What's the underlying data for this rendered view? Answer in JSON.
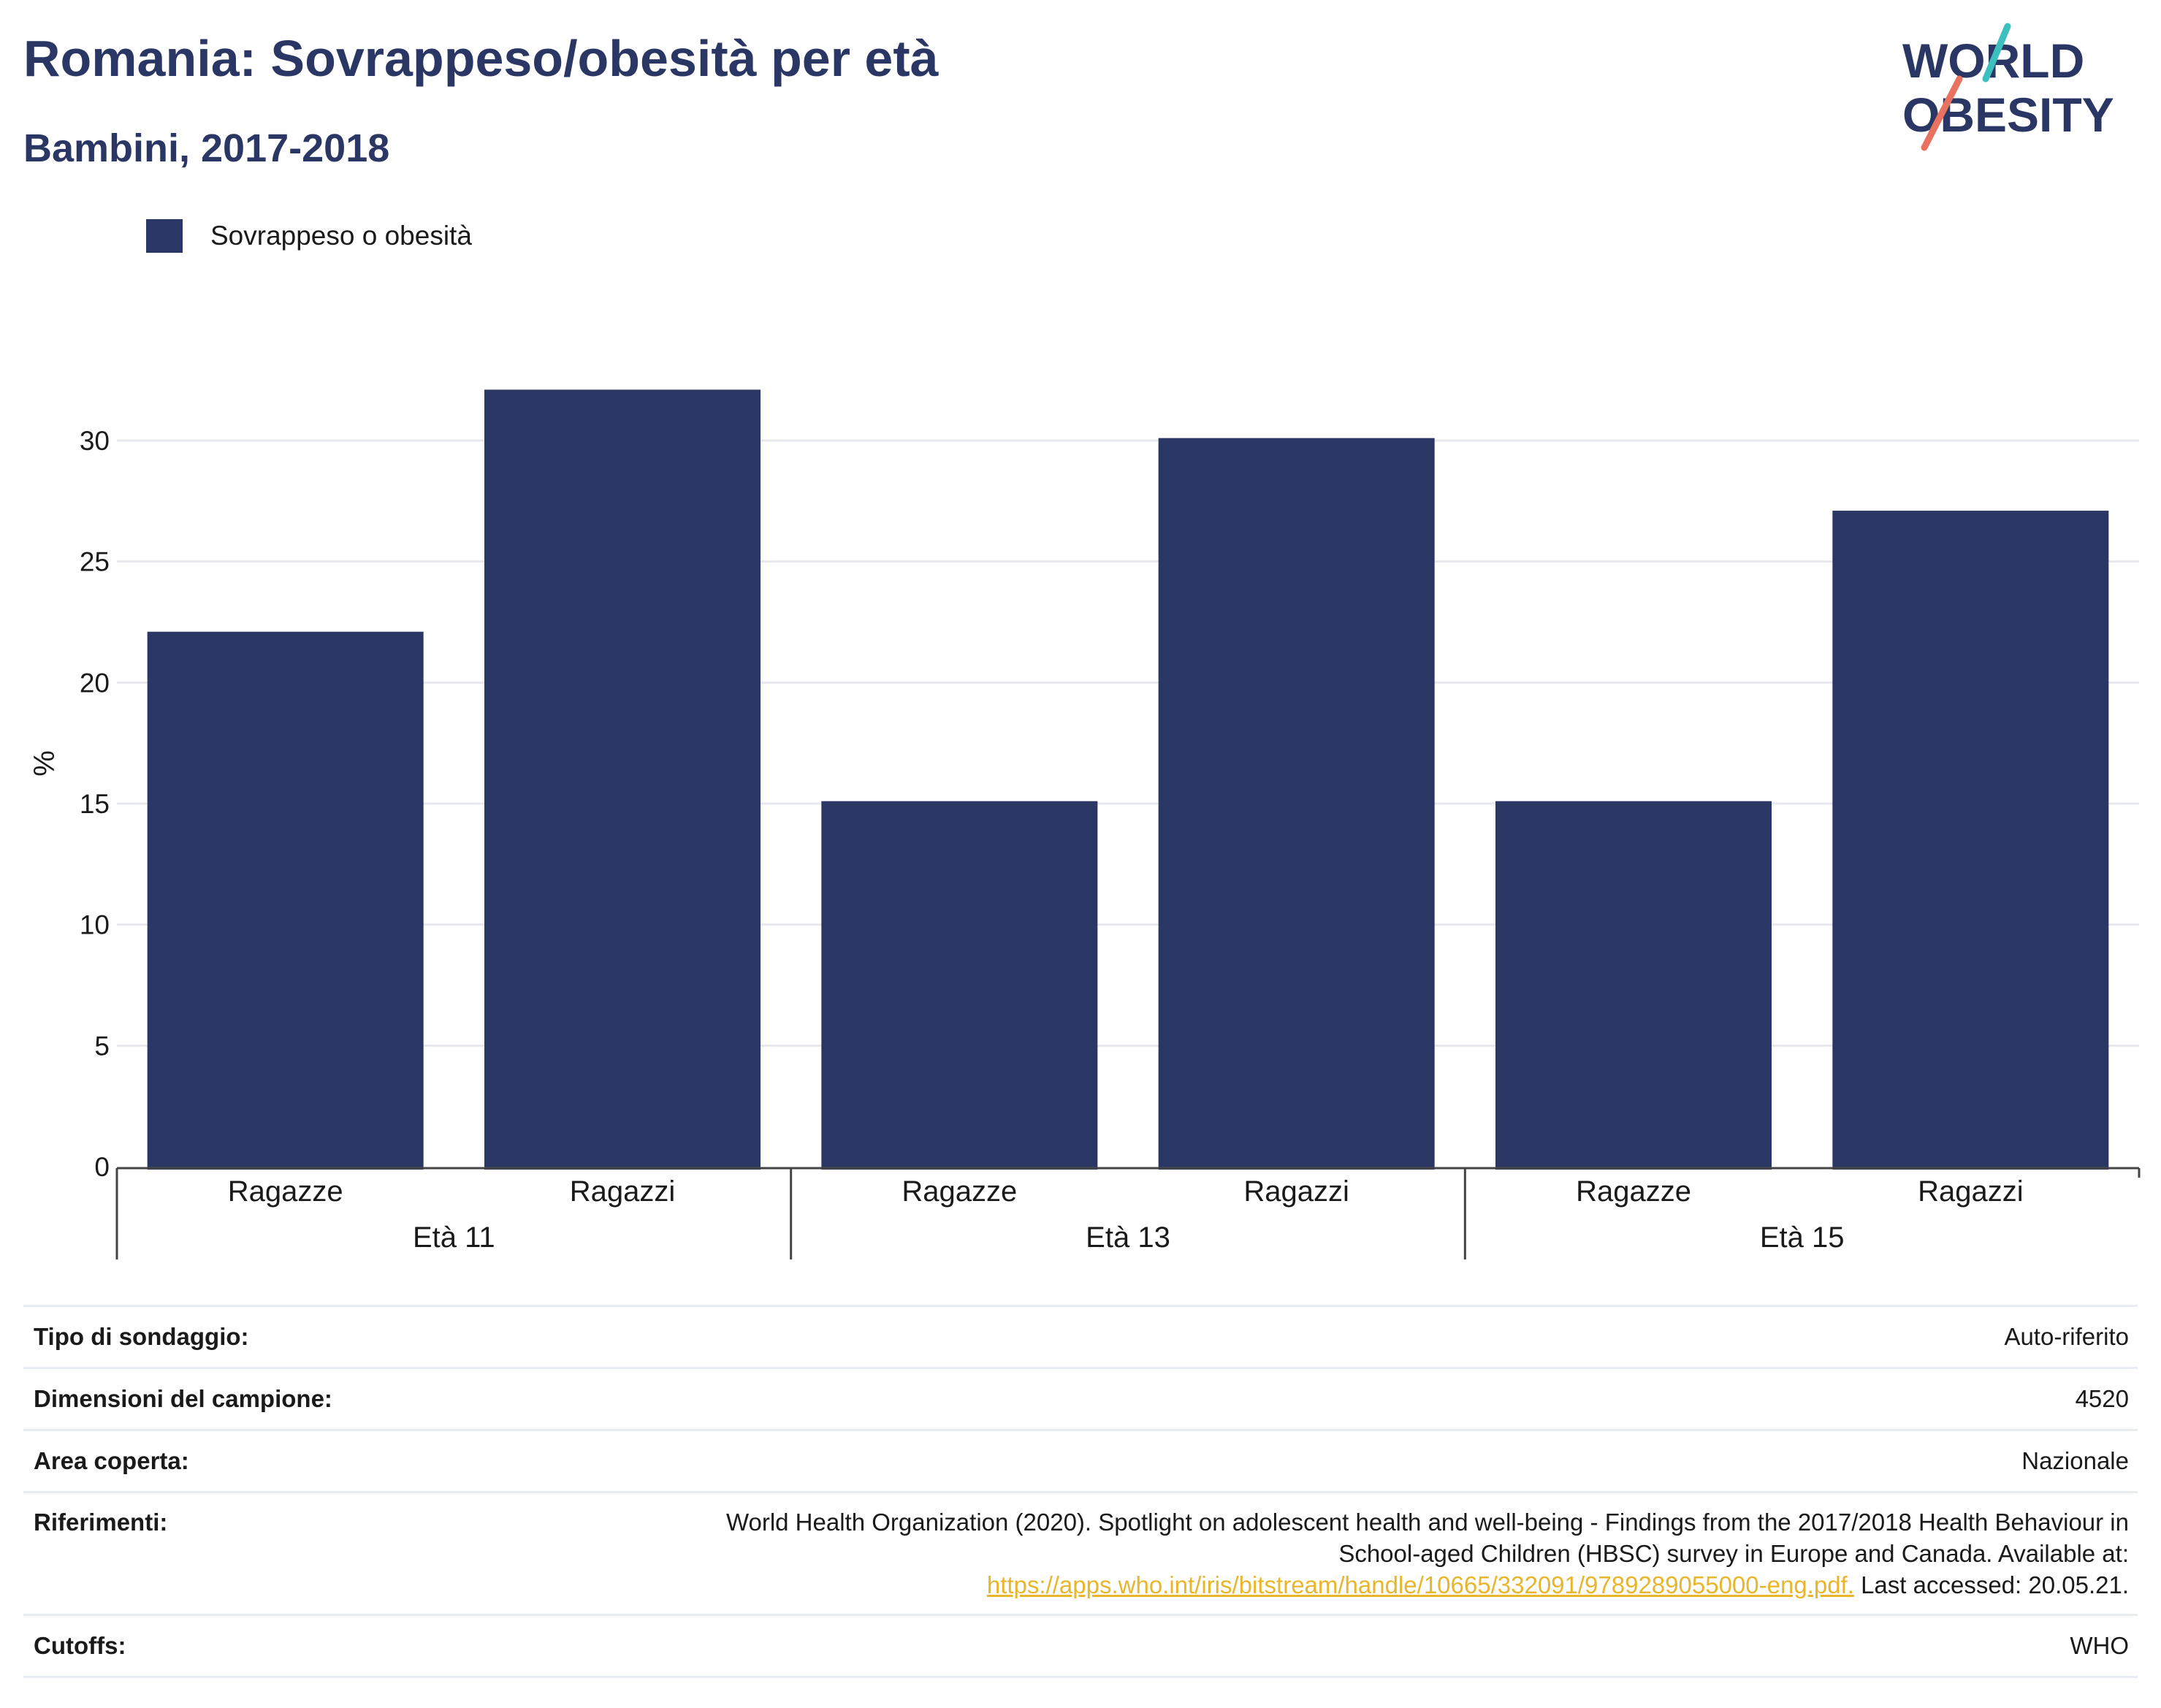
{
  "header": {
    "title": "Romania: Sovrappeso/obesità per età",
    "subtitle": "Bambini, 2017-2018"
  },
  "logo": {
    "line1": "WORLD",
    "line2": "OBESITY",
    "icon": "world-obesity-logo"
  },
  "colors": {
    "bar": "#2a3663",
    "title": "#2a3663",
    "link": "#e8b52b",
    "accent_teal": "#3cbfbf",
    "accent_coral": "#e8715f"
  },
  "chart_data": {
    "type": "bar",
    "legend": [
      "Sovrappeso o obesità"
    ],
    "legend_position": "top-left",
    "ylabel": "%",
    "ylim": [
      0,
      33.5
    ],
    "yticks": [
      0,
      5,
      10,
      15,
      20,
      25,
      30
    ],
    "grid": true,
    "groups": [
      {
        "label": "Età 11",
        "categories": [
          "Ragazze",
          "Ragazzi"
        ],
        "values": [
          22.1,
          32.1
        ]
      },
      {
        "label": "Età 13",
        "categories": [
          "Ragazze",
          "Ragazzi"
        ],
        "values": [
          15.1,
          30.1
        ]
      },
      {
        "label": "Età 15",
        "categories": [
          "Ragazze",
          "Ragazzi"
        ],
        "values": [
          15.1,
          27.1
        ]
      }
    ]
  },
  "info": {
    "survey_type": {
      "label": "Tipo di sondaggio:",
      "value": "Auto-riferito"
    },
    "sample_size": {
      "label": "Dimensioni del campione:",
      "value": "4520"
    },
    "area": {
      "label": "Area coperta:",
      "value": "Nazionale"
    },
    "references": {
      "label": "Riferimenti:",
      "line1": "World Health Organization (2020). Spotlight on adolescent health and well-being - Findings from the 2017/2018 Health Behaviour in",
      "line2": "School-aged Children (HBSC) survey in Europe and Canada. Available at:",
      "link": "https://apps.who.int/iris/bitstream/handle/10665/332091/9789289055000-eng.pdf.",
      "after_link": " Last accessed: 20.05.21."
    },
    "cutoffs": {
      "label": "Cutoffs:",
      "value": "WHO"
    }
  }
}
